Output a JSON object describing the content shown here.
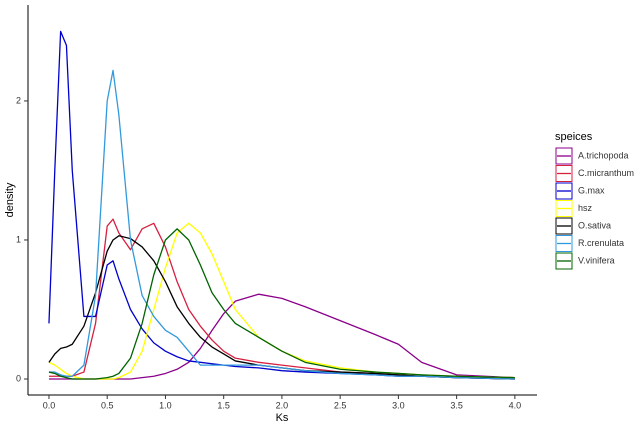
{
  "chart_data": {
    "type": "line",
    "x_label": "Ks",
    "y_label": "density",
    "legend_title": "speices",
    "legend_position": "right",
    "x": [
      0,
      0.05,
      0.1,
      0.15,
      0.2,
      0.3,
      0.4,
      0.5,
      0.55,
      0.6,
      0.7,
      0.8,
      0.9,
      1.0,
      1.1,
      1.2,
      1.3,
      1.4,
      1.5,
      1.6,
      1.8,
      2.0,
      2.2,
      2.5,
      2.8,
      3.0,
      3.2,
      3.5,
      4.0
    ],
    "xlim": [
      -0.18,
      4.19
    ],
    "ylim": [
      -0.115,
      2.69
    ],
    "xticks": [
      {
        "value": 0,
        "label": "0.0"
      },
      {
        "value": 0.5,
        "label": "0.5"
      },
      {
        "value": 1,
        "label": "1.0"
      },
      {
        "value": 1.5,
        "label": "1.5"
      },
      {
        "value": 2,
        "label": "2.0"
      },
      {
        "value": 2.5,
        "label": "2.5"
      },
      {
        "value": 3,
        "label": "3.0"
      },
      {
        "value": 3.5,
        "label": "3.5"
      },
      {
        "value": 4,
        "label": "4.0"
      }
    ],
    "yticks": [
      0,
      1,
      2
    ],
    "grid": false,
    "series": [
      {
        "name": "A.trichopoda",
        "color": "#8b008b",
        "values": [
          0,
          0,
          0,
          0,
          0,
          0,
          0,
          0,
          0,
          0,
          0,
          0.01,
          0.02,
          0.04,
          0.07,
          0.12,
          0.22,
          0.35,
          0.47,
          0.56,
          0.61,
          0.58,
          0.52,
          0.42,
          0.32,
          0.25,
          0.12,
          0.03,
          0.01
        ]
      },
      {
        "name": "C.micranthum",
        "color": "#d62040",
        "values": [
          0.02,
          0.02,
          0.02,
          0.02,
          0.02,
          0.05,
          0.4,
          1.1,
          1.15,
          1.05,
          0.93,
          1.08,
          1.12,
          0.95,
          0.7,
          0.5,
          0.38,
          0.28,
          0.2,
          0.15,
          0.12,
          0.1,
          0.08,
          0.05,
          0.04,
          0.03,
          0.02,
          0.01,
          0
        ]
      },
      {
        "name": "G.max",
        "color": "#0000cd",
        "values": [
          0.4,
          1.5,
          2.5,
          2.4,
          1.5,
          0.45,
          0.45,
          0.82,
          0.85,
          0.72,
          0.5,
          0.36,
          0.26,
          0.2,
          0.16,
          0.13,
          0.12,
          0.11,
          0.1,
          0.09,
          0.08,
          0.06,
          0.05,
          0.04,
          0.03,
          0.02,
          0.02,
          0.01,
          0
        ]
      },
      {
        "name": "hsz",
        "color": "#ffff00",
        "values": [
          0.12,
          0.1,
          0.07,
          0.04,
          0.02,
          0,
          0,
          0,
          0,
          0.01,
          0.05,
          0.2,
          0.5,
          0.8,
          1.05,
          1.12,
          1.05,
          0.9,
          0.7,
          0.5,
          0.3,
          0.2,
          0.13,
          0.08,
          0.05,
          0.04,
          0.03,
          0.02,
          0.01
        ]
      },
      {
        "name": "O.sativa",
        "color": "#000000",
        "values": [
          0.12,
          0.18,
          0.22,
          0.23,
          0.25,
          0.38,
          0.62,
          0.92,
          1.0,
          1.03,
          1.01,
          0.95,
          0.85,
          0.7,
          0.52,
          0.4,
          0.3,
          0.23,
          0.18,
          0.13,
          0.1,
          0.08,
          0.06,
          0.05,
          0.04,
          0.03,
          0.02,
          0.01,
          0
        ]
      },
      {
        "name": "R.crenulata",
        "color": "#3399dd",
        "values": [
          0.05,
          0.05,
          0.03,
          0.02,
          0.02,
          0.1,
          0.6,
          2.0,
          2.22,
          1.9,
          1.0,
          0.6,
          0.45,
          0.35,
          0.3,
          0.2,
          0.1,
          0.1,
          0.1,
          0.1,
          0.1,
          0.08,
          0.06,
          0.04,
          0.03,
          0.02,
          0.02,
          0.01,
          0
        ]
      },
      {
        "name": "V.vinifera",
        "color": "#006400",
        "values": [
          0.05,
          0.04,
          0.02,
          0.01,
          0,
          0,
          0,
          0.01,
          0.02,
          0.04,
          0.15,
          0.4,
          0.75,
          1.0,
          1.08,
          1.0,
          0.82,
          0.62,
          0.5,
          0.4,
          0.3,
          0.2,
          0.12,
          0.07,
          0.05,
          0.04,
          0.03,
          0.02,
          0.01
        ]
      }
    ]
  }
}
